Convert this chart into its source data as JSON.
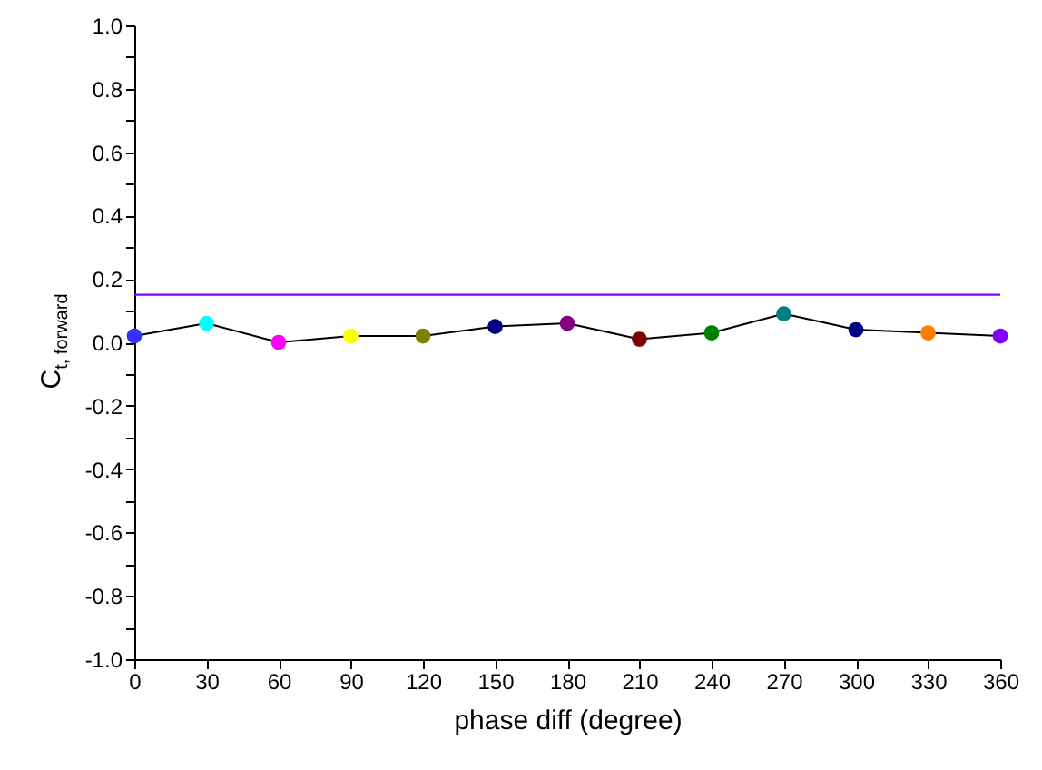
{
  "chart_data": {
    "type": "line",
    "xlabel": "phase diff (degree)",
    "ylabel": "C$_{t, forward}$",
    "x": [
      0,
      30,
      60,
      90,
      120,
      150,
      180,
      210,
      240,
      270,
      300,
      330,
      360
    ],
    "series": [
      {
        "color": "#000000",
        "values": [
          0.02,
          0.06,
          0,
          0.02,
          0.02,
          0.05,
          0.06,
          0.01,
          0.03,
          0.09,
          0.04,
          0.03,
          0.02
        ],
        "colors": [
          "#3333ff",
          "#00ffff",
          "#ff00ff",
          "#ffff00",
          "#808000",
          "#000080",
          "#800080",
          "#800000",
          "#008000",
          "#008080",
          "#000080",
          "#ff8000",
          "#8000ff"
        ]
      }
    ],
    "marker": "circle",
    "xlim": [
      0,
      360
    ],
    "xticks": [
      0,
      30,
      60,
      90,
      120,
      150,
      180,
      210,
      240,
      270,
      300,
      330,
      360
    ],
    "ylim": [
      -1,
      1
    ],
    "yticks": [
      {
        "value": -1,
        "label": "-1.0"
      },
      {
        "value": -0.9,
        "label": null
      },
      {
        "value": -0.8,
        "label": "-0.8"
      },
      {
        "value": -0.7,
        "label": null
      },
      {
        "value": -0.6,
        "label": "-0.6"
      },
      {
        "value": -0.5,
        "label": null
      },
      {
        "value": -0.4,
        "label": "-0.4"
      },
      {
        "value": -0.3,
        "label": null
      },
      {
        "value": -0.2,
        "label": "-0.2"
      },
      {
        "value": -0.1,
        "label": null
      },
      {
        "value": 0,
        "label": "0.0"
      },
      {
        "value": 0.1,
        "label": null
      },
      {
        "value": 0.2,
        "label": "0.2"
      },
      {
        "value": 0.3,
        "label": null
      },
      {
        "value": 0.4,
        "label": "0.4"
      },
      {
        "value": 0.5,
        "label": null
      },
      {
        "value": 0.6,
        "label": "0.6"
      },
      {
        "value": 0.7,
        "label": null
      },
      {
        "value": 0.8,
        "label": "0.8"
      },
      {
        "value": 0.9,
        "label": null
      },
      {
        "value": 1,
        "label": "1.0"
      }
    ],
    "ref_lines": [
      {
        "axis": "y",
        "value": 0.15,
        "color": "#8000ff"
      }
    ],
    "grid": false
  }
}
